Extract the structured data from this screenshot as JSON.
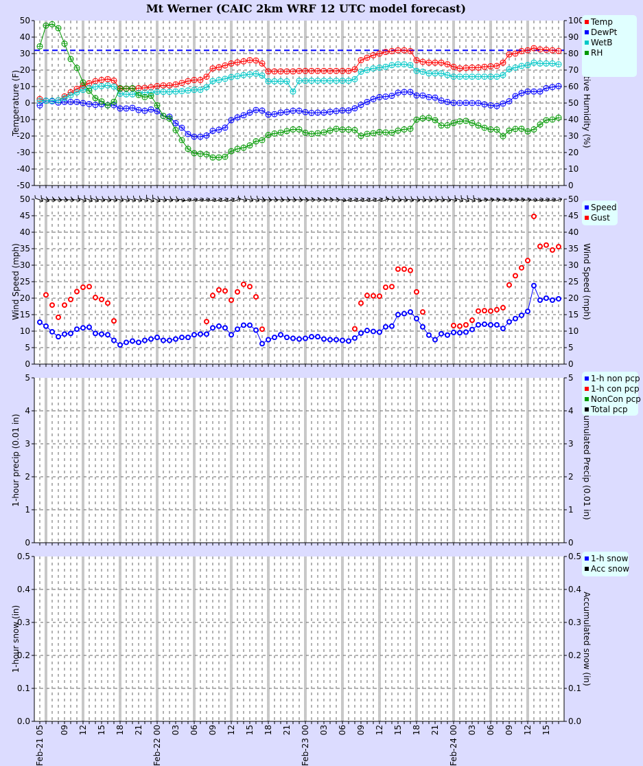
{
  "title": "Mt Werner (CAIC 2km WRF 12 UTC model forecast)",
  "colors": {
    "background": "#dcdcff",
    "plot_bg": "#ffffff",
    "legend_bg": "#e0ffff",
    "temp": "#ff0000",
    "dewpt": "#0000ff",
    "wetb": "#00c8c8",
    "rh": "#009900",
    "speed": "#0000ff",
    "gust": "#ff0000",
    "non_pcp": "#0000ff",
    "con_pcp": "#ff0000",
    "noncon_pcp": "#009900",
    "total_pcp": "#000000",
    "snow": "#0000ff",
    "acc_snow": "#000000",
    "synoptic_line": "#c8c8c8"
  },
  "x_axis": {
    "tick_labels": [
      {
        "hour": 0,
        "label": "Feb-21 05"
      },
      {
        "hour": 4,
        "label": "09"
      },
      {
        "hour": 7,
        "label": "12"
      },
      {
        "hour": 10,
        "label": "15"
      },
      {
        "hour": 13,
        "label": "18"
      },
      {
        "hour": 16,
        "label": "21"
      },
      {
        "hour": 19,
        "label": "Feb-22 00"
      },
      {
        "hour": 22,
        "label": "03"
      },
      {
        "hour": 25,
        "label": "06"
      },
      {
        "hour": 28,
        "label": "09"
      },
      {
        "hour": 31,
        "label": "12"
      },
      {
        "hour": 34,
        "label": "15"
      },
      {
        "hour": 37,
        "label": "18"
      },
      {
        "hour": 40,
        "label": "21"
      },
      {
        "hour": 43,
        "label": "Feb-23 00"
      },
      {
        "hour": 46,
        "label": "03"
      },
      {
        "hour": 49,
        "label": "06"
      },
      {
        "hour": 52,
        "label": "09"
      },
      {
        "hour": 55,
        "label": "12"
      },
      {
        "hour": 58,
        "label": "15"
      },
      {
        "hour": 61,
        "label": "18"
      },
      {
        "hour": 64,
        "label": "21"
      },
      {
        "hour": 67,
        "label": "Feb-24 00"
      },
      {
        "hour": 70,
        "label": "03"
      },
      {
        "hour": 73,
        "label": "06"
      },
      {
        "hour": 76,
        "label": "09"
      },
      {
        "hour": 79,
        "label": "12"
      },
      {
        "hour": 82,
        "label": "15"
      }
    ],
    "start": "Feb-21 05",
    "end": "Feb-24 17",
    "step_hours": 1
  },
  "chart_data": [
    {
      "type": "line",
      "ylabel": "Temperature (F)",
      "y2label": "Relative Humidity (%)",
      "ylim": [
        -50,
        50
      ],
      "yticks_step": 10,
      "y2lim": [
        0,
        100
      ],
      "y2ticks_step": 10,
      "grid": true,
      "legend": [
        "Temp",
        "DewPt",
        "WetB",
        "RH"
      ],
      "legend_placement": "right-outside",
      "reference_lines": [
        {
          "y": 32,
          "color": "#0000ff",
          "style": "dashed"
        }
      ],
      "series": [
        {
          "name": "Temp",
          "axis": "left",
          "values": [
            2.4,
            1.4,
            1.4,
            1.7,
            4,
            6.5,
            8.6,
            10.5,
            12,
            13.3,
            14,
            14.5,
            13.6,
            8.6,
            8.6,
            8.8,
            9,
            9.2,
            9.6,
            10.3,
            10.7,
            10.7,
            11.3,
            12.2,
            13.3,
            14,
            14,
            16,
            21,
            21.7,
            22.8,
            24,
            24.7,
            25.3,
            26,
            25.8,
            24,
            19.2,
            19.2,
            19.2,
            19.2,
            19.2,
            19.5,
            19.5,
            19.5,
            19.5,
            19.5,
            19.5,
            19.5,
            19.5,
            19.5,
            20.5,
            26,
            27.5,
            29,
            30,
            31,
            31.5,
            32,
            32,
            31.5,
            26,
            25,
            24.5,
            24.5,
            24.5,
            23.5,
            22,
            21,
            21.3,
            21.5,
            21.5,
            22,
            22.3,
            22.5,
            24.5,
            29.5,
            30,
            31.5,
            32,
            33.3,
            32.5,
            32.3,
            32,
            31.6
          ]
        },
        {
          "name": "DewPt",
          "axis": "left",
          "values": [
            -1.4,
            1.4,
            1.1,
            0.3,
            0.7,
            0.7,
            0.7,
            0,
            -0.6,
            -1.1,
            -0.7,
            -1.3,
            -1.3,
            -3.3,
            -3.3,
            -2.9,
            -4.2,
            -4.7,
            -3.9,
            -5,
            -7.8,
            -8.3,
            -12.2,
            -15,
            -18.8,
            -20.4,
            -20.4,
            -19.7,
            -16.9,
            -16.2,
            -14.9,
            -10.4,
            -8.7,
            -7.4,
            -5.8,
            -4.2,
            -4.6,
            -7,
            -6.7,
            -5.8,
            -5.4,
            -4.7,
            -4.7,
            -5.5,
            -6,
            -5.8,
            -5.8,
            -5.3,
            -4.9,
            -4.5,
            -4.5,
            -3.2,
            -1.1,
            0.7,
            2.4,
            3.6,
            3.9,
            4.4,
            6.3,
            6.7,
            6.7,
            4.6,
            4.6,
            3.6,
            3.3,
            1.5,
            0.7,
            0.1,
            0,
            0.1,
            0,
            0,
            -0.8,
            -1.4,
            -1.8,
            -0.3,
            1.1,
            4.2,
            6,
            7,
            7,
            7,
            9,
            9.7,
            10.3
          ]
        },
        {
          "name": "WetB",
          "axis": "left",
          "values": [
            1.4,
            1.4,
            1.4,
            1.7,
            3,
            4.7,
            6.5,
            8,
            9,
            9.9,
            10.3,
            10.7,
            10,
            5.6,
            5.3,
            5.3,
            6.1,
            6.4,
            6.5,
            6.8,
            6.8,
            6.8,
            7,
            7.2,
            7.6,
            8,
            8,
            9.6,
            13.3,
            14,
            14.7,
            15.8,
            16.3,
            17,
            17.4,
            17.8,
            16.7,
            13.2,
            13.2,
            13.2,
            13.2,
            7,
            13.5,
            13.5,
            13.5,
            13.5,
            13.5,
            13.5,
            13.5,
            13.5,
            13.5,
            14.5,
            19,
            20,
            21,
            21.5,
            22,
            23,
            23.5,
            23.5,
            23,
            19.5,
            19,
            18,
            18,
            18,
            17,
            16,
            16,
            16,
            16,
            16,
            16,
            16,
            16,
            17,
            20.5,
            21.5,
            22.5,
            23,
            24.5,
            24,
            24,
            24,
            23.5
          ]
        },
        {
          "name": "RH",
          "axis": "right",
          "values": [
            84.4,
            97,
            97.8,
            95.4,
            86,
            76.7,
            71.3,
            62.5,
            57.4,
            53,
            51,
            48.6,
            50.8,
            59,
            58.8,
            59,
            54.9,
            53.6,
            54.4,
            48.6,
            42.2,
            40.6,
            33.6,
            27.5,
            22.2,
            19.6,
            19.2,
            18.9,
            17,
            17,
            17.4,
            20.8,
            22.2,
            22.9,
            24.3,
            26.8,
            27.5,
            30.6,
            31.5,
            32.1,
            33,
            34,
            34,
            32,
            31.3,
            31.7,
            32.2,
            33.3,
            34.4,
            33.9,
            33.9,
            33.6,
            30.1,
            31.3,
            31.7,
            32.4,
            32.2,
            32,
            33.3,
            34,
            34.4,
            39.9,
            40.7,
            41,
            39.6,
            36.4,
            36.5,
            37.9,
            38.9,
            39.2,
            37.9,
            36.4,
            35,
            34,
            33.9,
            29.9,
            33.3,
            34.3,
            34.4,
            32.8,
            34,
            37,
            39.6,
            40,
            41.1
          ]
        }
      ]
    },
    {
      "type": "line",
      "ylabel": "Wind Speed (mph)",
      "y2label": "Wind Speed (mph)",
      "ylim": [
        0,
        50
      ],
      "yticks_step": 5,
      "y2lim": [
        0,
        50
      ],
      "y2ticks_step": 5,
      "grid": true,
      "legend": [
        "Speed",
        "Gust"
      ],
      "legend_placement": "right-outside",
      "wind_direction_deg": [
        290,
        290,
        275,
        275,
        275,
        275,
        275,
        290,
        290,
        290,
        280,
        280,
        280,
        285,
        285,
        285,
        285,
        285,
        295,
        295,
        280,
        280,
        280,
        280,
        255,
        255,
        255,
        255,
        255,
        250,
        250,
        250,
        250,
        285,
        285,
        285,
        285,
        275,
        275,
        275,
        275,
        275,
        275,
        275,
        270,
        270,
        270,
        270,
        270,
        270,
        250,
        250,
        250,
        250,
        250,
        250,
        250,
        280,
        280,
        280,
        280,
        280,
        280,
        280,
        280,
        280,
        280,
        280,
        290,
        290,
        290,
        290,
        265,
        265,
        265,
        265,
        265,
        265,
        265,
        265,
        265,
        255,
        255,
        255,
        255
      ],
      "series": [
        {
          "name": "Speed",
          "values": [
            12.7,
            11.5,
            9.8,
            8.3,
            9.1,
            9.3,
            10.6,
            11,
            11.2,
            9.3,
            9.1,
            8.9,
            7.2,
            5.8,
            6.6,
            7,
            6.6,
            7.2,
            7.6,
            8.1,
            7.2,
            7.2,
            7.6,
            8.1,
            8.1,
            8.9,
            9.1,
            9.1,
            11,
            11.5,
            11,
            8.9,
            10.6,
            11.8,
            11.8,
            10.3,
            6.2,
            7.4,
            8.1,
            8.9,
            8.1,
            7.8,
            7.6,
            7.8,
            8.3,
            8.3,
            7.6,
            7.4,
            7.4,
            7.2,
            7.0,
            7.9,
            9.4,
            10.2,
            9.9,
            9.7,
            11.3,
            11.5,
            15.0,
            15.3,
            15.8,
            13.8,
            11.3,
            8.8,
            7.4,
            9.2,
            8.8,
            9.6,
            9.5,
            9.7,
            10.5,
            11.9,
            12.1,
            11.9,
            11.9,
            10.8,
            12.8,
            13.8,
            14.8,
            16.0,
            23.8,
            19.4,
            20.0,
            19.4,
            19.8
          ]
        },
        {
          "name": "Gust",
          "values": [
            null,
            21,
            17.9,
            14.2,
            17.9,
            19.6,
            22,
            23.3,
            23.5,
            20.2,
            19.6,
            18.5,
            13.1,
            null,
            null,
            null,
            null,
            null,
            null,
            null,
            null,
            null,
            null,
            null,
            null,
            null,
            null,
            12.9,
            20.8,
            22.5,
            22.2,
            19.4,
            21.9,
            24.2,
            23.5,
            20.4,
            10.6,
            null,
            null,
            null,
            null,
            null,
            null,
            null,
            null,
            null,
            null,
            null,
            null,
            null,
            null,
            10.7,
            18.5,
            20.8,
            20.7,
            20.6,
            23.3,
            23.5,
            28.8,
            28.8,
            28.4,
            21.9,
            15.8,
            null,
            null,
            null,
            null,
            11.7,
            11.5,
            11.9,
            13.3,
            16.1,
            16.2,
            16.1,
            16.5,
            17.1,
            24,
            26.8,
            29.2,
            31.4,
            44.8,
            35.7,
            36.1,
            34.6,
            35.6
          ]
        }
      ]
    },
    {
      "type": "bar",
      "ylabel": "1-hour precip (0.01 in)",
      "y2label": "Accumulated Precip (0.01 in)",
      "ylim": [
        0,
        5
      ],
      "yticks_step": 1,
      "y2lim": [
        0,
        5
      ],
      "y2ticks_step": 1,
      "grid": true,
      "legend": [
        "1-h non pcp",
        "1-h con pcp",
        "NonCon pcp",
        "Total pcp"
      ],
      "legend_placement": "right-outside",
      "series": []
    },
    {
      "type": "bar",
      "ylabel": "1-hour snow (in)",
      "y2label": "Accumulated snow (in)",
      "ylim": [
        0,
        0.5
      ],
      "yticks_step": 0.1,
      "y2lim": [
        0,
        0.5
      ],
      "y2ticks_step": 0.1,
      "grid": true,
      "legend": [
        "1-h snow",
        "Acc snow"
      ],
      "legend_placement": "right-outside",
      "series": []
    }
  ]
}
